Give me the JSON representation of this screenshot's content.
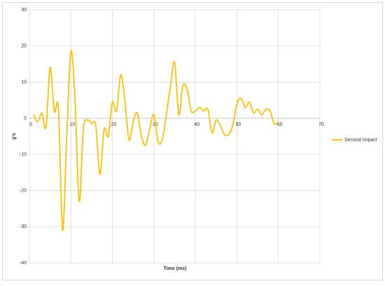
{
  "chart_data": {
    "type": "line",
    "x_label": "Time (ms)",
    "y_label": "g's",
    "x": [
      1,
      2,
      3,
      4,
      5,
      6,
      7,
      8,
      9,
      10,
      11,
      12,
      13,
      14,
      15,
      16,
      17,
      18,
      19,
      20,
      21,
      22,
      23,
      24,
      25,
      26,
      27,
      28,
      29,
      30,
      31,
      32,
      33,
      34,
      35,
      36,
      37,
      38,
      39,
      40,
      41,
      42,
      43,
      44,
      45,
      46,
      47,
      48,
      49,
      50,
      51,
      52,
      53,
      54,
      55,
      56,
      57,
      58,
      59,
      60
    ],
    "series": [
      {
        "name": "Second Impact",
        "color": "#ffc000",
        "values": [
          1,
          -1,
          1.5,
          -2.5,
          14,
          2,
          2.5,
          -31,
          -5,
          18.5,
          5,
          -23,
          -3,
          -0.5,
          -1.5,
          -2,
          -15.5,
          -3,
          -5,
          4.5,
          2,
          12,
          5,
          -6,
          -1,
          1.5,
          -5,
          -7.5,
          -3,
          1,
          -6.5,
          -6,
          1,
          9,
          15.5,
          1,
          9,
          8,
          2,
          2,
          3,
          2,
          2.5,
          -4,
          -0.5,
          -2,
          -4.5,
          -4.5,
          -2,
          4,
          5.5,
          3,
          4.5,
          1.5,
          2.5,
          1,
          2.5,
          2,
          -1.5,
          -1
        ]
      }
    ],
    "xlim": [
      0,
      70
    ],
    "ylim": [
      -40,
      30
    ],
    "xticks": [
      0,
      10,
      20,
      30,
      40,
      50,
      60,
      70
    ],
    "yticks": [
      -40,
      -30,
      -20,
      -10,
      0,
      10,
      20,
      30
    ],
    "grid": true,
    "legend": "right"
  }
}
